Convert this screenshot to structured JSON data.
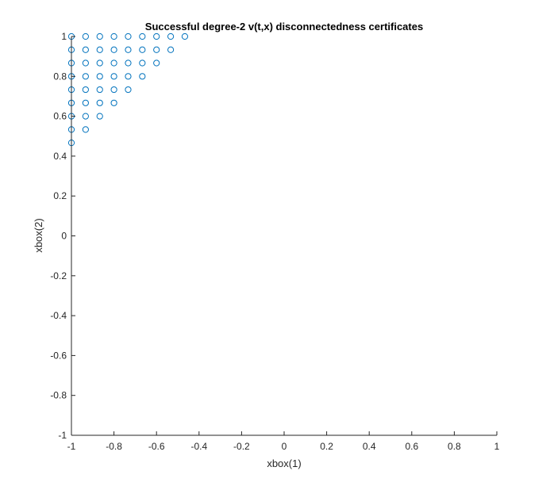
{
  "chart_data": {
    "type": "scatter",
    "title": "Successful degree-2 v(t,x) disconnectedness certificates",
    "xlabel": "xbox(1)",
    "ylabel": "xbox(2)",
    "xlim": [
      -1,
      1
    ],
    "ylim": [
      -1,
      1
    ],
    "grid": false,
    "marker": "circle-open",
    "marker_color": "#0072BD",
    "axis_color": "#262626",
    "xticks": [
      -1,
      -0.8,
      -0.6,
      -0.4,
      -0.2,
      0,
      0.2,
      0.4,
      0.6,
      0.8,
      1
    ],
    "xtick_labels": [
      "-1",
      "-0.8",
      "-0.6",
      "-0.4",
      "-0.2",
      "0",
      "0.2",
      "0.4",
      "0.6",
      "0.8",
      "1"
    ],
    "yticks": [
      -1,
      -0.8,
      -0.6,
      -0.4,
      -0.2,
      0,
      0.2,
      0.4,
      0.6,
      0.8,
      1
    ],
    "ytick_labels": [
      "-1",
      "-0.8",
      "-0.6",
      "-0.4",
      "-0.2",
      "0",
      "0.2",
      "0.4",
      "0.6",
      "0.8",
      "1"
    ],
    "series": [
      {
        "points": [
          [
            -1,
            1
          ],
          [
            -0.9333,
            1
          ],
          [
            -0.8667,
            1
          ],
          [
            -0.8,
            1
          ],
          [
            -0.7333,
            1
          ],
          [
            -0.6667,
            1
          ],
          [
            -0.6,
            1
          ],
          [
            -0.5333,
            1
          ],
          [
            -0.4667,
            1
          ],
          [
            -1,
            0.9333
          ],
          [
            -0.9333,
            0.9333
          ],
          [
            -0.8667,
            0.9333
          ],
          [
            -0.8,
            0.9333
          ],
          [
            -0.7333,
            0.9333
          ],
          [
            -0.6667,
            0.9333
          ],
          [
            -0.6,
            0.9333
          ],
          [
            -0.5333,
            0.9333
          ],
          [
            -1,
            0.8667
          ],
          [
            -0.9333,
            0.8667
          ],
          [
            -0.8667,
            0.8667
          ],
          [
            -0.8,
            0.8667
          ],
          [
            -0.7333,
            0.8667
          ],
          [
            -0.6667,
            0.8667
          ],
          [
            -0.6,
            0.8667
          ],
          [
            -1,
            0.8
          ],
          [
            -0.9333,
            0.8
          ],
          [
            -0.8667,
            0.8
          ],
          [
            -0.8,
            0.8
          ],
          [
            -0.7333,
            0.8
          ],
          [
            -0.6667,
            0.8
          ],
          [
            -1,
            0.7333
          ],
          [
            -0.9333,
            0.7333
          ],
          [
            -0.8667,
            0.7333
          ],
          [
            -0.8,
            0.7333
          ],
          [
            -0.7333,
            0.7333
          ],
          [
            -1,
            0.6667
          ],
          [
            -0.9333,
            0.6667
          ],
          [
            -0.8667,
            0.6667
          ],
          [
            -0.8,
            0.6667
          ],
          [
            -1,
            0.6
          ],
          [
            -0.9333,
            0.6
          ],
          [
            -0.8667,
            0.6
          ],
          [
            -1,
            0.5333
          ],
          [
            -0.9333,
            0.5333
          ],
          [
            -1,
            0.4667
          ]
        ]
      }
    ]
  }
}
